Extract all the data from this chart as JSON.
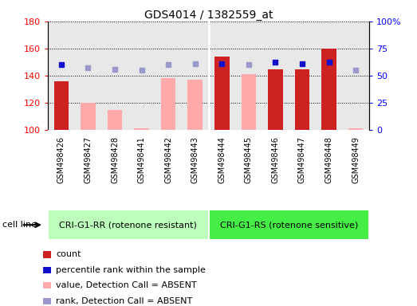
{
  "title": "GDS4014 / 1382559_at",
  "samples": [
    "GSM498426",
    "GSM498427",
    "GSM498428",
    "GSM498441",
    "GSM498442",
    "GSM498443",
    "GSM498444",
    "GSM498445",
    "GSM498446",
    "GSM498447",
    "GSM498448",
    "GSM498449"
  ],
  "group1_label": "CRI-G1-RR (rotenone resistant)",
  "group2_label": "CRI-G1-RS (rotenone sensitive)",
  "group1_count": 6,
  "group2_count": 6,
  "count_values": [
    136,
    null,
    null,
    null,
    null,
    null,
    154,
    null,
    145,
    145,
    160,
    null
  ],
  "absent_value_bars": [
    null,
    120,
    115,
    101,
    138,
    137,
    null,
    141,
    null,
    null,
    null,
    101
  ],
  "rank_values_present": [
    148,
    null,
    null,
    null,
    null,
    null,
    149,
    null,
    150,
    149,
    150,
    null
  ],
  "rank_values_absent": [
    null,
    146,
    145,
    144,
    148,
    149,
    null,
    148,
    null,
    null,
    null,
    144
  ],
  "ylim_left": [
    100,
    180
  ],
  "ylim_right": [
    0,
    100
  ],
  "yticks_left": [
    100,
    120,
    140,
    160,
    180
  ],
  "yticks_right": [
    0,
    25,
    50,
    75,
    100
  ],
  "bar_color_present": "#cc2222",
  "bar_color_absent": "#ffaaaa",
  "dot_color_present": "#1111cc",
  "dot_color_absent": "#9999cc",
  "group1_bg": "#bbffbb",
  "group2_bg": "#44ee44",
  "xarea_bg": "#cccccc",
  "plot_bg": "#e8e8e8",
  "legend_items": [
    {
      "color": "#cc2222",
      "label": "count"
    },
    {
      "color": "#1111cc",
      "label": "percentile rank within the sample"
    },
    {
      "color": "#ffaaaa",
      "label": "value, Detection Call = ABSENT"
    },
    {
      "color": "#9999cc",
      "label": "rank, Detection Call = ABSENT"
    }
  ],
  "cell_line_label": "cell line",
  "bar_width": 0.55
}
